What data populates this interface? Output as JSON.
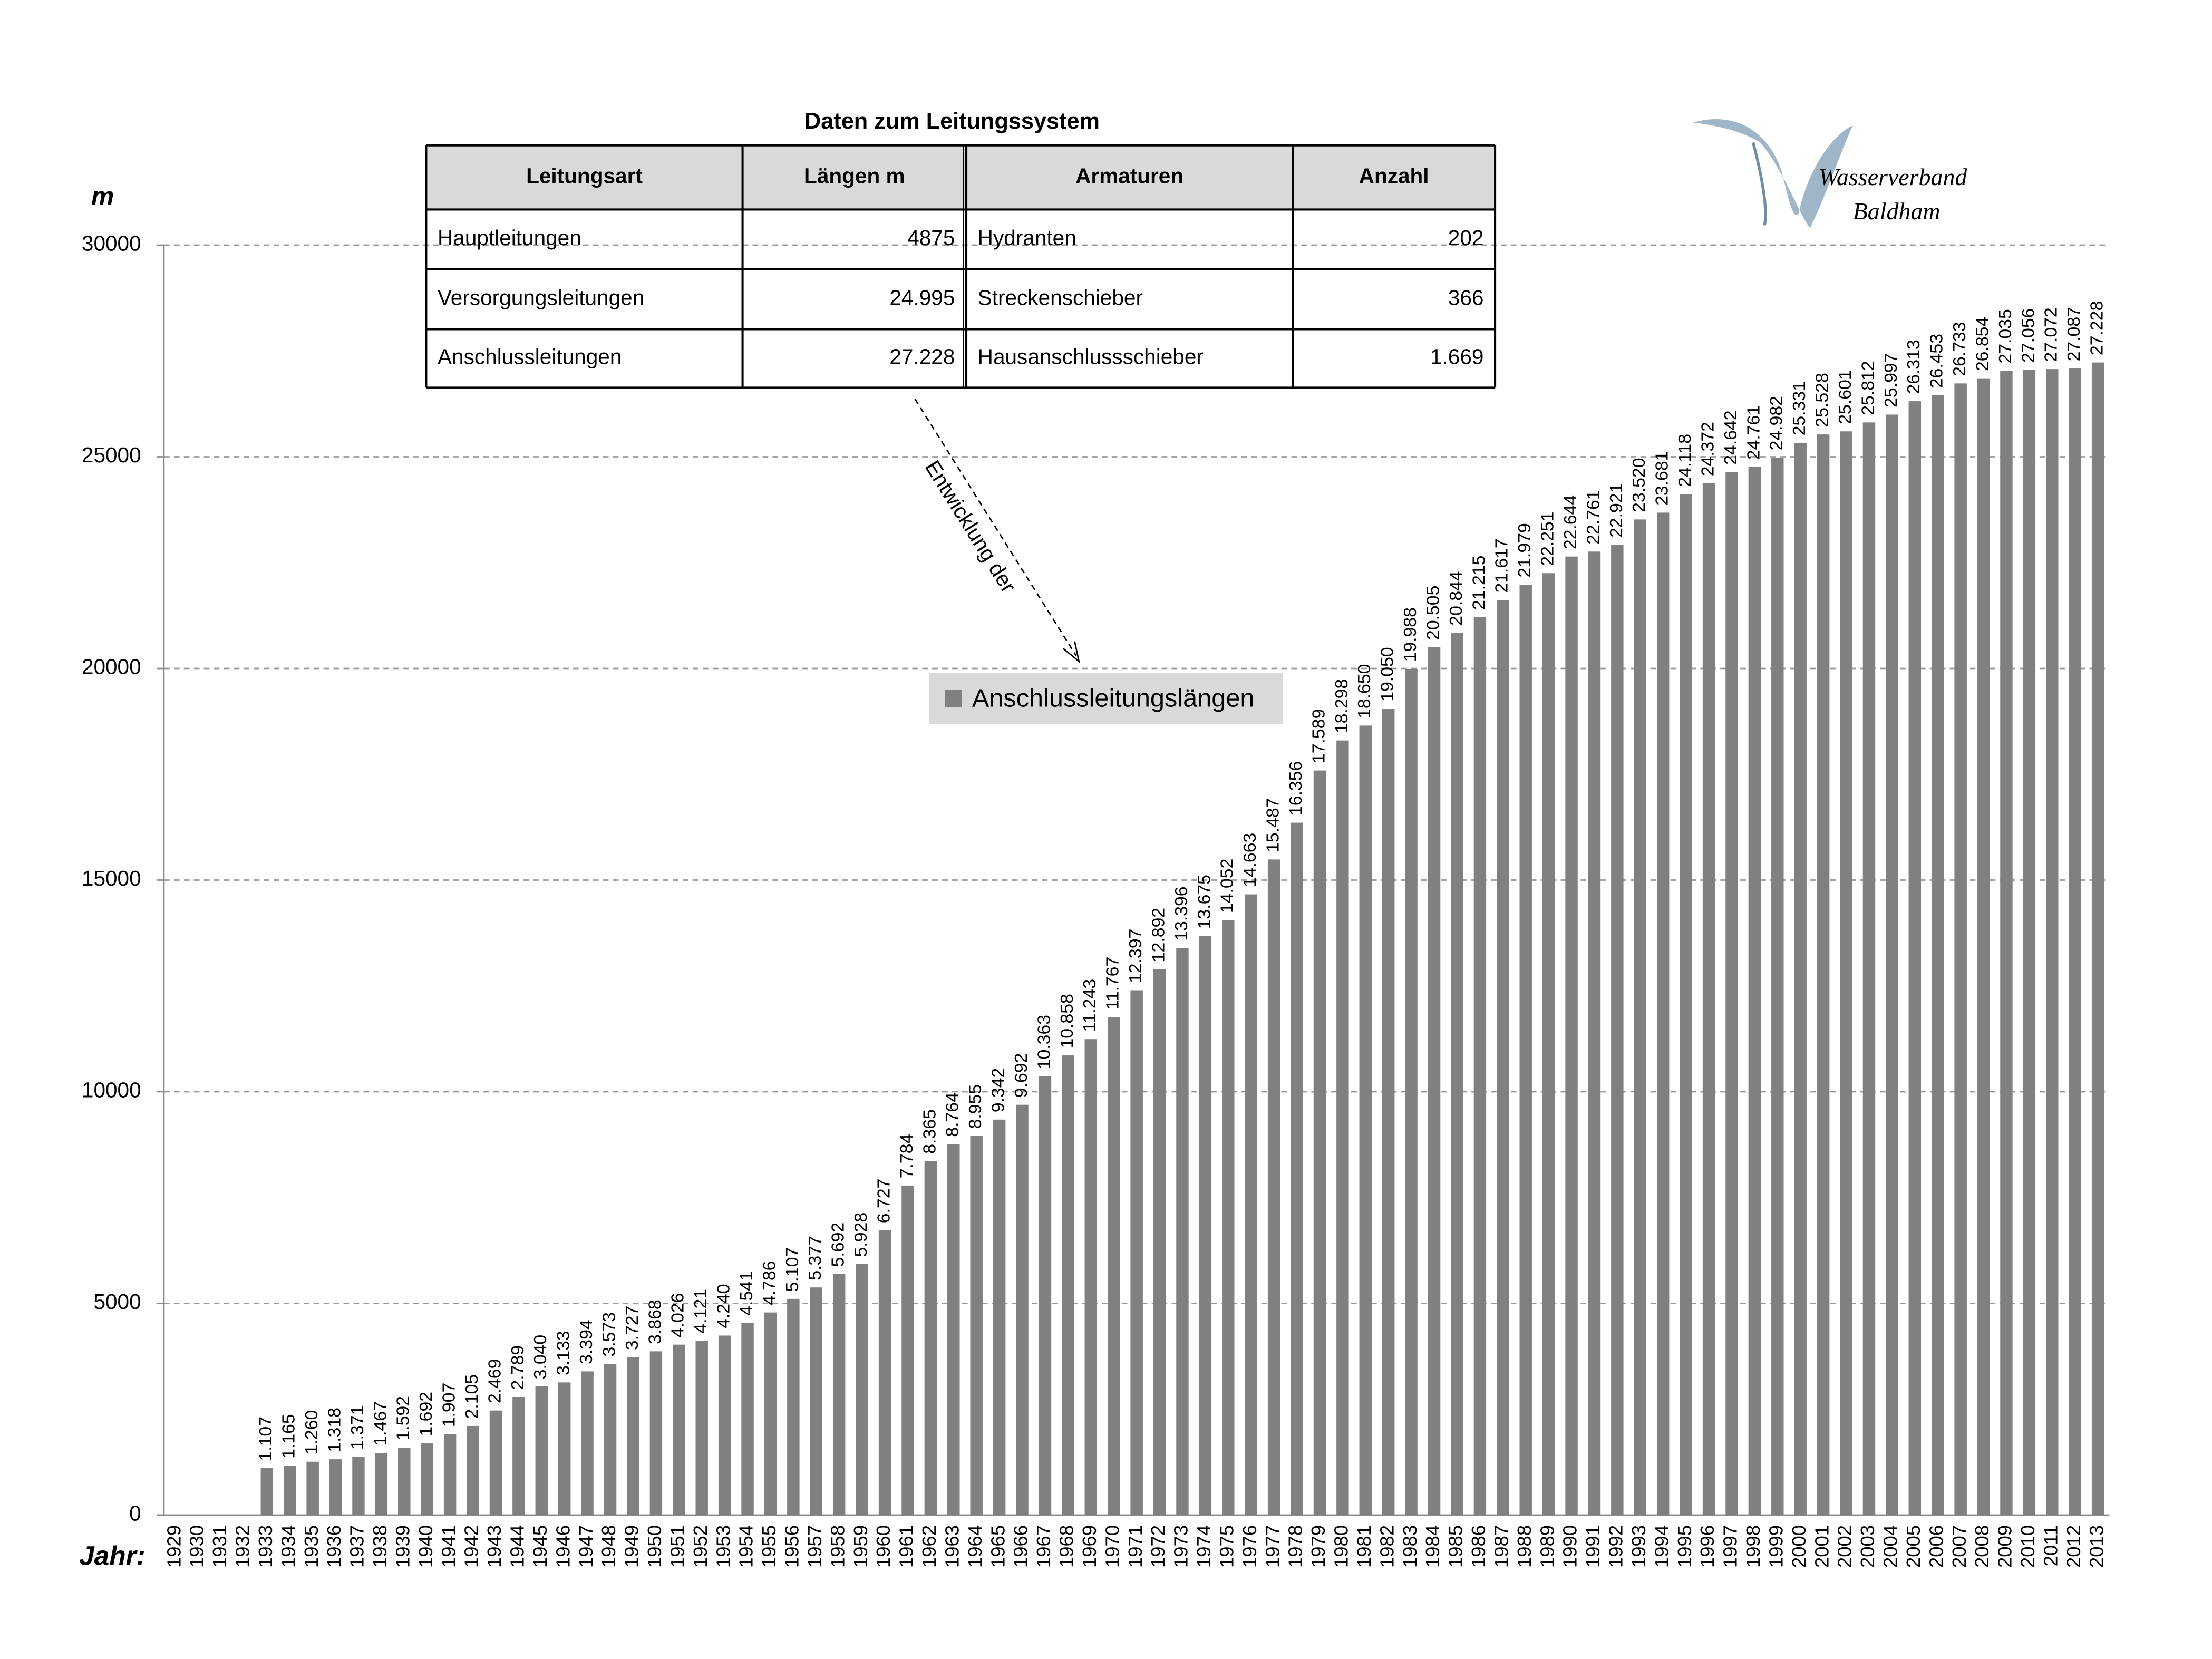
{
  "chart_data": {
    "type": "bar",
    "y_label": "m",
    "x_label": "Jahr:",
    "categories": [
      "1929",
      "1930",
      "1931",
      "1932",
      "1933",
      "1934",
      "1935",
      "1936",
      "1937",
      "1938",
      "1939",
      "1940",
      "1941",
      "1942",
      "1943",
      "1944",
      "1945",
      "1946",
      "1947",
      "1948",
      "1949",
      "1950",
      "1951",
      "1952",
      "1953",
      "1954",
      "1955",
      "1956",
      "1957",
      "1958",
      "1959",
      "1960",
      "1961",
      "1962",
      "1963",
      "1964",
      "1965",
      "1966",
      "1967",
      "1968",
      "1969",
      "1970",
      "1971",
      "1972",
      "1973",
      "1974",
      "1975",
      "1976",
      "1977",
      "1978",
      "1979",
      "1980",
      "1981",
      "1982",
      "1983",
      "1984",
      "1985",
      "1986",
      "1987",
      "1988",
      "1989",
      "1990",
      "1991",
      "1992",
      "1993",
      "1994",
      "1995",
      "1996",
      "1997",
      "1998",
      "1999",
      "2000",
      "2001",
      "2002",
      "2003",
      "2004",
      "2005",
      "2006",
      "2007",
      "2008",
      "2009",
      "2010",
      "2011",
      "2012",
      "2013"
    ],
    "series": [
      {
        "name": "Anschlussleitungslängen",
        "color": "#808080",
        "values": [
          null,
          null,
          null,
          null,
          1107,
          1165,
          1260,
          1318,
          1371,
          1467,
          1592,
          1692,
          1907,
          2105,
          2469,
          2789,
          3040,
          3133,
          3394,
          3573,
          3727,
          3868,
          4026,
          4121,
          4240,
          4541,
          4786,
          5107,
          5377,
          5692,
          5928,
          6727,
          7784,
          8365,
          8764,
          8955,
          9342,
          9692,
          10363,
          10858,
          11243,
          11767,
          12397,
          12892,
          13396,
          13675,
          14052,
          14663,
          15487,
          16356,
          17589,
          18298,
          18650,
          19050,
          19988,
          20505,
          20844,
          21215,
          21617,
          21979,
          22251,
          22644,
          22761,
          22921,
          23520,
          23681,
          24118,
          24372,
          24642,
          24761,
          24982,
          25331,
          25528,
          25601,
          25812,
          25997,
          26313,
          26453,
          26733,
          26854,
          27035,
          27056,
          27072,
          27087,
          27228
        ],
        "value_labels": [
          null,
          null,
          null,
          null,
          "1.107",
          "1.165",
          "1.260",
          "1.318",
          "1.371",
          "1.467",
          "1.592",
          "1.692",
          "1.907",
          "2.105",
          "2.469",
          "2.789",
          "3.040",
          "3.133",
          "3.394",
          "3.573",
          "3.727",
          "3.868",
          "4.026",
          "4.121",
          "4.240",
          "4.541",
          "4.786",
          "5.107",
          "5.377",
          "5.692",
          "5.928",
          "6.727",
          "7.784",
          "8.365",
          "8.764",
          "8.955",
          "9.342",
          "9.692",
          "10.363",
          "10.858",
          "11.243",
          "11.767",
          "12.397",
          "12.892",
          "13.396",
          "13.675",
          "14.052",
          "14.663",
          "15.487",
          "16.356",
          "17.589",
          "18.298",
          "18.650",
          "19.050",
          "19.988",
          "20.505",
          "20.844",
          "21.215",
          "21.617",
          "21.979",
          "22.251",
          "22.644",
          "22.761",
          "22.921",
          "23.520",
          "23.681",
          "24.118",
          "24.372",
          "24.642",
          "24.761",
          "24.982",
          "25.331",
          "25.528",
          "25.601",
          "25.812",
          "25.997",
          "26.313",
          "26.453",
          "26.733",
          "26.854",
          "27.035",
          "27.056",
          "27.072",
          "27.087",
          "27.228"
        ]
      }
    ],
    "ylim": [
      0,
      30000
    ],
    "yticks": [
      0,
      5000,
      10000,
      15000,
      20000,
      25000,
      30000
    ],
    "grid": true,
    "annotation": "Entwicklung der"
  },
  "table": {
    "title": "Daten zum Leitungssystem",
    "header": [
      "Leitungsart",
      "Längen m",
      "Armaturen",
      "Anzahl"
    ],
    "rows": [
      [
        "Hauptleitungen",
        "4875",
        "Hydranten",
        "202"
      ],
      [
        "Versorgungsleitungen",
        "24.995",
        "Streckenschieber",
        "366"
      ],
      [
        "Anschlussleitungen",
        "27.228",
        "Hausanschlussschieber",
        "1.669"
      ]
    ]
  },
  "logo": {
    "line1": "Wasserverband",
    "line2": "Baldham"
  }
}
